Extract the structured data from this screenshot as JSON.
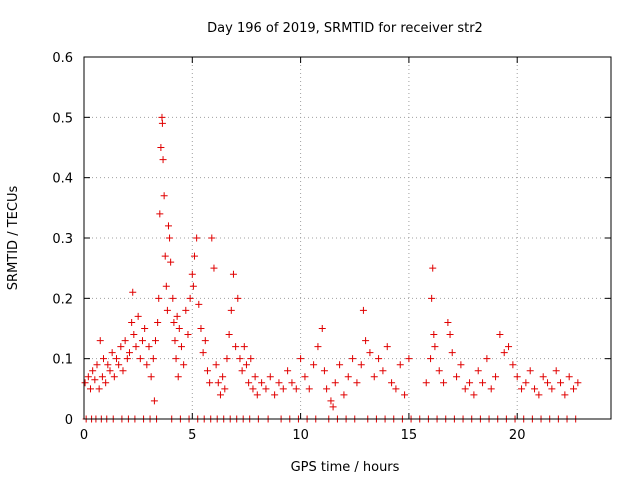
{
  "chart_data": {
    "type": "scatter",
    "title": "Day 196 of 2019, SRMTID for receiver str2",
    "xlabel": "GPS time / hours",
    "ylabel": "SRMTID / TECUs",
    "xlim": [
      0,
      24.33
    ],
    "ylim": [
      0,
      0.6
    ],
    "x_ticks": [
      0,
      5,
      10,
      15,
      20
    ],
    "x_tick_labels": [
      "0",
      "5",
      "10",
      "15",
      "20"
    ],
    "y_ticks": [
      0,
      0.1,
      0.2,
      0.3,
      0.4,
      0.5,
      0.6
    ],
    "y_tick_labels": [
      "0",
      "0.1",
      "0.2",
      "0.3",
      "0.4",
      "0.5",
      "0.6"
    ],
    "grid": true,
    "marker": "+",
    "color": "#e00000",
    "series": [
      {
        "name": "str2",
        "points": [
          [
            0.05,
            0.06
          ],
          [
            0.1,
            0.0
          ],
          [
            0.2,
            0.07
          ],
          [
            0.3,
            0.05
          ],
          [
            0.35,
            0.0
          ],
          [
            0.4,
            0.08
          ],
          [
            0.5,
            0.065
          ],
          [
            0.55,
            0.0
          ],
          [
            0.6,
            0.09
          ],
          [
            0.7,
            0.05
          ],
          [
            0.75,
            0.13
          ],
          [
            0.8,
            0.0
          ],
          [
            0.85,
            0.07
          ],
          [
            0.9,
            0.1
          ],
          [
            1.0,
            0.06
          ],
          [
            1.05,
            0.0
          ],
          [
            1.1,
            0.09
          ],
          [
            1.2,
            0.08
          ],
          [
            1.3,
            0.11
          ],
          [
            1.35,
            0.0
          ],
          [
            1.4,
            0.07
          ],
          [
            1.5,
            0.1
          ],
          [
            1.6,
            0.09
          ],
          [
            1.7,
            0.12
          ],
          [
            1.75,
            0.0
          ],
          [
            1.8,
            0.08
          ],
          [
            1.9,
            0.13
          ],
          [
            2.0,
            0.1
          ],
          [
            2.05,
            0.0
          ],
          [
            2.1,
            0.11
          ],
          [
            2.2,
            0.16
          ],
          [
            2.25,
            0.21
          ],
          [
            2.3,
            0.14
          ],
          [
            2.35,
            0.0
          ],
          [
            2.4,
            0.12
          ],
          [
            2.5,
            0.17
          ],
          [
            2.6,
            0.1
          ],
          [
            2.7,
            0.13
          ],
          [
            2.75,
            0.0
          ],
          [
            2.8,
            0.15
          ],
          [
            2.9,
            0.09
          ],
          [
            3.0,
            0.12
          ],
          [
            3.05,
            0.0
          ],
          [
            3.1,
            0.07
          ],
          [
            3.2,
            0.1
          ],
          [
            3.25,
            0.03
          ],
          [
            3.3,
            0.13
          ],
          [
            3.35,
            0.0
          ],
          [
            3.4,
            0.16
          ],
          [
            3.45,
            0.2
          ],
          [
            3.5,
            0.34
          ],
          [
            3.55,
            0.45
          ],
          [
            3.6,
            0.5
          ],
          [
            3.62,
            0.49
          ],
          [
            3.65,
            0.43
          ],
          [
            3.7,
            0.37
          ],
          [
            3.75,
            0.27
          ],
          [
            3.8,
            0.22
          ],
          [
            3.85,
            0.18
          ],
          [
            3.9,
            0.32
          ],
          [
            3.95,
            0.3
          ],
          [
            4.0,
            0.26
          ],
          [
            4.05,
            0.0
          ],
          [
            4.1,
            0.2
          ],
          [
            4.15,
            0.16
          ],
          [
            4.2,
            0.13
          ],
          [
            4.25,
            0.1
          ],
          [
            4.3,
            0.17
          ],
          [
            4.35,
            0.07
          ],
          [
            4.4,
            0.15
          ],
          [
            4.45,
            0.0
          ],
          [
            4.5,
            0.12
          ],
          [
            4.6,
            0.09
          ],
          [
            4.7,
            0.18
          ],
          [
            4.8,
            0.14
          ],
          [
            4.85,
            0.0
          ],
          [
            4.9,
            0.2
          ],
          [
            5.0,
            0.24
          ],
          [
            5.05,
            0.22
          ],
          [
            5.1,
            0.27
          ],
          [
            5.2,
            0.3
          ],
          [
            5.25,
            0.0
          ],
          [
            5.3,
            0.19
          ],
          [
            5.4,
            0.15
          ],
          [
            5.5,
            0.11
          ],
          [
            5.55,
            0.0
          ],
          [
            5.6,
            0.13
          ],
          [
            5.7,
            0.08
          ],
          [
            5.8,
            0.06
          ],
          [
            5.85,
            0.0
          ],
          [
            5.9,
            0.3
          ],
          [
            6.0,
            0.25
          ],
          [
            6.1,
            0.09
          ],
          [
            6.15,
            0.0
          ],
          [
            6.2,
            0.06
          ],
          [
            6.3,
            0.04
          ],
          [
            6.4,
            0.07
          ],
          [
            6.45,
            0.0
          ],
          [
            6.5,
            0.05
          ],
          [
            6.6,
            0.1
          ],
          [
            6.7,
            0.14
          ],
          [
            6.75,
            0.0
          ],
          [
            6.8,
            0.18
          ],
          [
            6.9,
            0.24
          ],
          [
            7.0,
            0.12
          ],
          [
            7.05,
            0.0
          ],
          [
            7.1,
            0.2
          ],
          [
            7.2,
            0.1
          ],
          [
            7.3,
            0.08
          ],
          [
            7.35,
            0.0
          ],
          [
            7.4,
            0.12
          ],
          [
            7.5,
            0.09
          ],
          [
            7.6,
            0.06
          ],
          [
            7.65,
            0.0
          ],
          [
            7.7,
            0.1
          ],
          [
            7.8,
            0.05
          ],
          [
            7.9,
            0.07
          ],
          [
            8.0,
            0.04
          ],
          [
            8.05,
            0.0
          ],
          [
            8.2,
            0.06
          ],
          [
            8.4,
            0.05
          ],
          [
            8.5,
            0.0
          ],
          [
            8.6,
            0.07
          ],
          [
            8.8,
            0.04
          ],
          [
            9.0,
            0.06
          ],
          [
            9.1,
            0.0
          ],
          [
            9.2,
            0.05
          ],
          [
            9.4,
            0.08
          ],
          [
            9.5,
            0.0
          ],
          [
            9.6,
            0.06
          ],
          [
            9.8,
            0.05
          ],
          [
            9.9,
            0.0
          ],
          [
            10.0,
            0.1
          ],
          [
            10.2,
            0.07
          ],
          [
            10.3,
            0.0
          ],
          [
            10.4,
            0.05
          ],
          [
            10.6,
            0.09
          ],
          [
            10.7,
            0.0
          ],
          [
            10.8,
            0.12
          ],
          [
            11.0,
            0.15
          ],
          [
            11.1,
            0.08
          ],
          [
            11.2,
            0.05
          ],
          [
            11.3,
            0.0
          ],
          [
            11.4,
            0.03
          ],
          [
            11.5,
            0.02
          ],
          [
            11.6,
            0.06
          ],
          [
            11.7,
            0.0
          ],
          [
            11.8,
            0.09
          ],
          [
            12.0,
            0.04
          ],
          [
            12.1,
            0.0
          ],
          [
            12.2,
            0.07
          ],
          [
            12.4,
            0.1
          ],
          [
            12.5,
            0.0
          ],
          [
            12.6,
            0.06
          ],
          [
            12.8,
            0.09
          ],
          [
            12.9,
            0.18
          ],
          [
            13.0,
            0.13
          ],
          [
            13.1,
            0.0
          ],
          [
            13.2,
            0.11
          ],
          [
            13.4,
            0.07
          ],
          [
            13.5,
            0.0
          ],
          [
            13.6,
            0.1
          ],
          [
            13.8,
            0.08
          ],
          [
            13.9,
            0.0
          ],
          [
            14.0,
            0.12
          ],
          [
            14.2,
            0.06
          ],
          [
            14.3,
            0.0
          ],
          [
            14.4,
            0.05
          ],
          [
            14.6,
            0.09
          ],
          [
            14.7,
            0.0
          ],
          [
            14.8,
            0.04
          ],
          [
            15.0,
            0.1
          ],
          [
            15.1,
            0.0
          ],
          [
            15.5,
            0.0
          ],
          [
            15.8,
            0.06
          ],
          [
            15.9,
            0.0
          ],
          [
            16.0,
            0.1
          ],
          [
            16.05,
            0.2
          ],
          [
            16.1,
            0.25
          ],
          [
            16.15,
            0.14
          ],
          [
            16.2,
            0.12
          ],
          [
            16.3,
            0.0
          ],
          [
            16.4,
            0.08
          ],
          [
            16.6,
            0.06
          ],
          [
            16.7,
            0.0
          ],
          [
            16.8,
            0.16
          ],
          [
            16.9,
            0.14
          ],
          [
            17.0,
            0.11
          ],
          [
            17.1,
            0.0
          ],
          [
            17.2,
            0.07
          ],
          [
            17.4,
            0.09
          ],
          [
            17.5,
            0.0
          ],
          [
            17.6,
            0.05
          ],
          [
            17.8,
            0.06
          ],
          [
            17.9,
            0.0
          ],
          [
            18.0,
            0.04
          ],
          [
            18.2,
            0.08
          ],
          [
            18.3,
            0.0
          ],
          [
            18.4,
            0.06
          ],
          [
            18.6,
            0.1
          ],
          [
            18.7,
            0.0
          ],
          [
            18.8,
            0.05
          ],
          [
            19.0,
            0.07
          ],
          [
            19.1,
            0.0
          ],
          [
            19.2,
            0.14
          ],
          [
            19.4,
            0.11
          ],
          [
            19.5,
            0.0
          ],
          [
            19.6,
            0.12
          ],
          [
            19.8,
            0.09
          ],
          [
            19.9,
            0.0
          ],
          [
            20.0,
            0.07
          ],
          [
            20.2,
            0.05
          ],
          [
            20.3,
            0.0
          ],
          [
            20.4,
            0.06
          ],
          [
            20.6,
            0.08
          ],
          [
            20.7,
            0.0
          ],
          [
            20.8,
            0.05
          ],
          [
            21.0,
            0.04
          ],
          [
            21.1,
            0.0
          ],
          [
            21.2,
            0.07
          ],
          [
            21.4,
            0.06
          ],
          [
            21.5,
            0.0
          ],
          [
            21.6,
            0.05
          ],
          [
            21.8,
            0.08
          ],
          [
            21.9,
            0.0
          ],
          [
            22.0,
            0.06
          ],
          [
            22.2,
            0.04
          ],
          [
            22.3,
            0.0
          ],
          [
            22.4,
            0.07
          ],
          [
            22.6,
            0.05
          ],
          [
            22.7,
            0.0
          ],
          [
            22.8,
            0.06
          ]
        ]
      }
    ]
  }
}
